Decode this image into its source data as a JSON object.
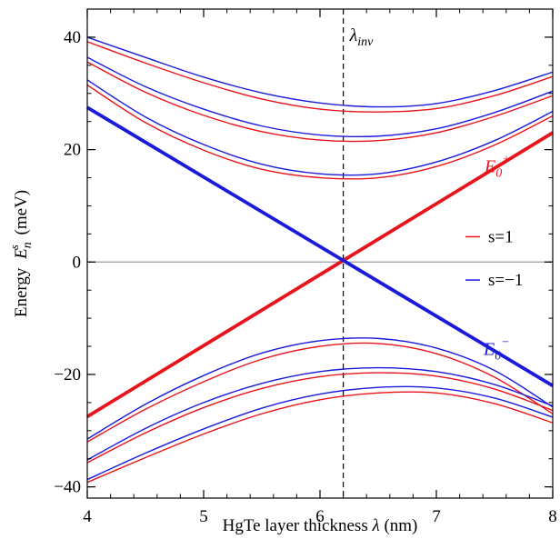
{
  "chart_data": {
    "type": "line",
    "xlabel_prefix": "HgTe layer thickness",
    "xlabel_symbol": "λ",
    "xlabel_unit": "(nm)",
    "ylabel_prefix": "Energy",
    "ylabel_symbol": "E",
    "ylabel_sub": "n",
    "ylabel_sup": "s",
    "ylabel_unit": "(meV)",
    "xlim": [
      4,
      8
    ],
    "ylim": [
      -42,
      45
    ],
    "x_ticks": [
      4,
      5,
      6,
      7,
      8
    ],
    "y_ticks": [
      -40,
      -20,
      0,
      20,
      40
    ],
    "y_tick_labels": [
      "−40",
      "−20",
      "0",
      "20",
      "40"
    ],
    "vline": {
      "x": 6.2,
      "label_symbol": "λ",
      "label_sub": "inv"
    },
    "zero_line": true,
    "colors": {
      "s_plus": "#e8141c",
      "s_minus": "#1a1adb"
    },
    "legend": {
      "placement": "right",
      "entries": [
        {
          "label": "s=1",
          "color": "#e8141c"
        },
        {
          "label": "s=−1",
          "color": "#1a1adb"
        }
      ]
    },
    "annotations": {
      "e0_plus": {
        "base": "E",
        "sub": "0",
        "sup": "+",
        "color": "#e8141c"
      },
      "e0_minus": {
        "base": "E",
        "sub": "0",
        "sup": "−",
        "color": "#1a1adb"
      }
    },
    "x_samples": [
      4.0,
      4.5,
      5.0,
      5.5,
      6.0,
      6.5,
      7.0,
      7.5,
      8.0
    ],
    "series": [
      {
        "id": "e0-plus",
        "color": "#e8141c",
        "bold": true,
        "x": [
          4.0,
          8.0
        ],
        "y": [
          -27.5,
          23.0
        ]
      },
      {
        "id": "e0-minus",
        "color": "#1a1adb",
        "bold": true,
        "x": [
          4.0,
          8.0
        ],
        "y": [
          27.5,
          -22.0
        ]
      },
      {
        "id": "c1-minus",
        "color": "#1a1adb",
        "y": [
          32.4,
          25.8,
          20.9,
          17.4,
          15.7,
          15.7,
          17.8,
          21.6,
          26.8
        ]
      },
      {
        "id": "c1-plus",
        "color": "#e8141c",
        "y": [
          31.5,
          24.8,
          19.9,
          16.5,
          15.0,
          15.0,
          17.0,
          20.8,
          26.0
        ]
      },
      {
        "id": "c2-minus",
        "color": "#1a1adb",
        "y": [
          36.4,
          31.2,
          27.2,
          24.2,
          22.6,
          22.4,
          23.7,
          26.6,
          30.4
        ]
      },
      {
        "id": "c2-plus",
        "color": "#e8141c",
        "y": [
          35.6,
          30.2,
          26.1,
          23.2,
          21.7,
          21.6,
          23.0,
          25.9,
          29.6
        ]
      },
      {
        "id": "c3-minus",
        "color": "#1a1adb",
        "y": [
          40.0,
          36.4,
          32.9,
          30.1,
          28.3,
          27.6,
          28.2,
          30.5,
          33.8
        ]
      },
      {
        "id": "c3-plus",
        "color": "#e8141c",
        "y": [
          39.2,
          35.4,
          31.9,
          29.0,
          27.2,
          26.7,
          27.3,
          29.6,
          33.0
        ]
      },
      {
        "id": "v1-minus",
        "color": "#1a1adb",
        "y": [
          -31.5,
          -25.3,
          -20.2,
          -16.2,
          -14.0,
          -13.6,
          -15.3,
          -19.3,
          -25.8
        ]
      },
      {
        "id": "v1-plus",
        "color": "#e8141c",
        "y": [
          -32.0,
          -26.2,
          -21.3,
          -17.3,
          -15.0,
          -14.5,
          -16.3,
          -20.5,
          -27.0
        ]
      },
      {
        "id": "v2-minus",
        "color": "#1a1adb",
        "y": [
          -35.2,
          -29.6,
          -25.0,
          -21.6,
          -19.5,
          -18.8,
          -19.5,
          -21.8,
          -25.6
        ]
      },
      {
        "id": "v2-plus",
        "color": "#e8141c",
        "y": [
          -35.7,
          -30.4,
          -25.9,
          -22.5,
          -20.4,
          -19.7,
          -20.3,
          -22.6,
          -26.4
        ]
      },
      {
        "id": "v3-minus",
        "color": "#1a1adb",
        "y": [
          -38.7,
          -34.0,
          -29.7,
          -26.0,
          -23.5,
          -22.3,
          -22.4,
          -24.2,
          -27.6
        ]
      },
      {
        "id": "v3-plus",
        "color": "#e8141c",
        "y": [
          -39.2,
          -34.8,
          -30.6,
          -27.0,
          -24.5,
          -23.3,
          -23.3,
          -25.2,
          -28.6
        ]
      }
    ]
  }
}
